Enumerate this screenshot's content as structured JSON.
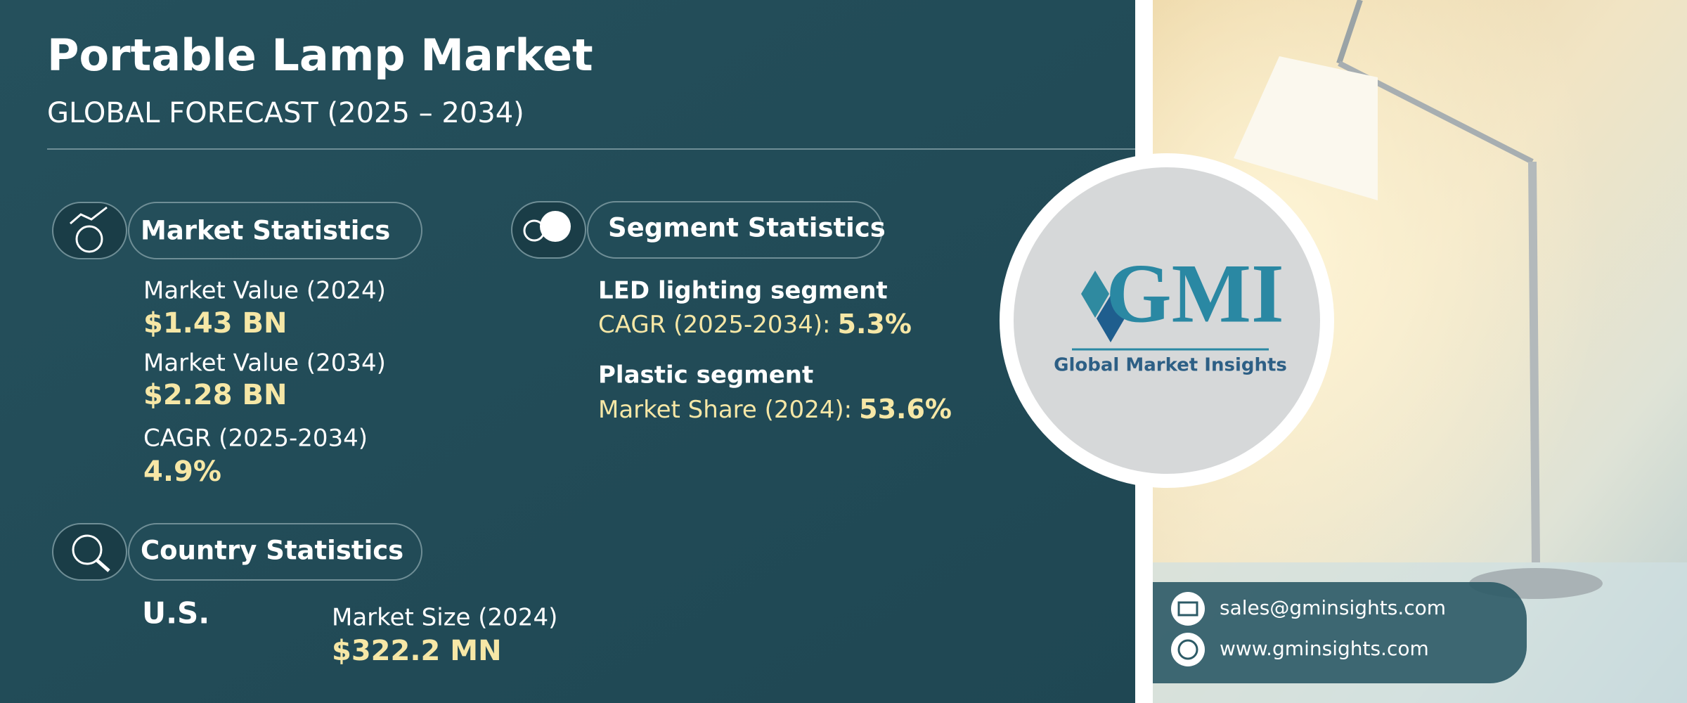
{
  "header": {
    "title": "Portable Lamp Market",
    "subtitle": "GLOBAL FORECAST (2025 – 2034)"
  },
  "market_statistics": {
    "heading": "Market Statistics",
    "items": [
      {
        "label": "Market Value (2024)",
        "value": "$1.43 BN"
      },
      {
        "label": "Market Value (2034)",
        "value": "$2.28 BN"
      },
      {
        "label": "CAGR (2025-2034)",
        "value": "4.9%"
      }
    ]
  },
  "segment_statistics": {
    "heading": "Segment Statistics",
    "items": [
      {
        "name": "LED lighting segment",
        "label": "CAGR (2025-2034):",
        "value": "5.3%"
      },
      {
        "name": "Plastic segment",
        "label": "Market Share (2024):",
        "value": "53.6%"
      }
    ]
  },
  "country_statistics": {
    "heading": "Country Statistics",
    "country": "U.S.",
    "label": "Market Size (2024)",
    "value": "$322.2 MN"
  },
  "logo": {
    "name": "GMI",
    "tagline": "Global Market Insights"
  },
  "contact": {
    "email": "sales@gminsights.com",
    "website": "www.gminsights.com"
  }
}
